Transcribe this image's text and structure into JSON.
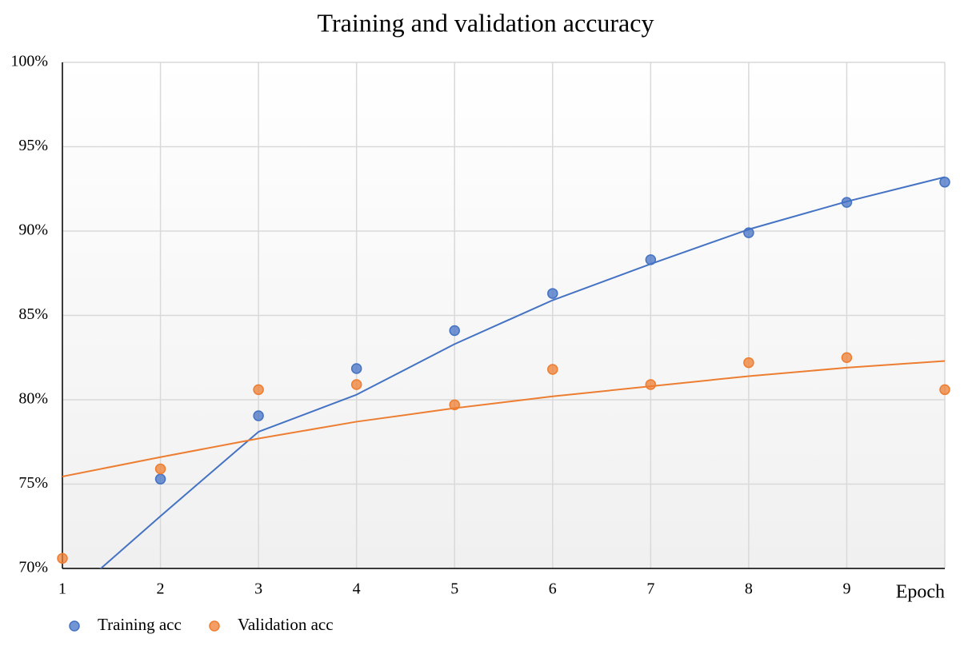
{
  "chart_data": {
    "type": "scatter",
    "title": "Training and validation accuracy",
    "x_label": "Epoch",
    "x": [
      1,
      2,
      3,
      4,
      5,
      6,
      7,
      8,
      9,
      10
    ],
    "series": [
      {
        "name": "Training acc",
        "color": "#4472c4",
        "values": [
          null,
          75.3,
          79.05,
          81.85,
          84.1,
          86.3,
          88.3,
          89.9,
          91.7,
          92.9
        ],
        "trend": [
          68,
          73.1,
          78.1,
          80.3,
          83.3,
          85.9,
          88.05,
          90.1,
          91.75,
          93.2
        ]
      },
      {
        "name": "Validation acc",
        "color": "#ed7d31",
        "values": [
          70.6,
          75.9,
          80.6,
          80.9,
          79.7,
          81.8,
          80.9,
          82.2,
          82.5,
          80.6
        ],
        "trend": [
          75.45,
          76.6,
          77.7,
          78.7,
          79.5,
          80.2,
          80.8,
          81.4,
          81.9,
          82.3
        ]
      }
    ],
    "xlim": [
      1,
      10
    ],
    "xticks": [
      1,
      2,
      3,
      4,
      5,
      6,
      7,
      8,
      9
    ],
    "ylim": [
      70,
      100
    ],
    "yticks": [
      {
        "value": 70,
        "label": "70%"
      },
      {
        "value": 75,
        "label": "75%"
      },
      {
        "value": 80,
        "label": "80%"
      },
      {
        "value": 85,
        "label": "85%"
      },
      {
        "value": 90,
        "label": "90%"
      },
      {
        "value": 95,
        "label": "95%"
      },
      {
        "value": 100,
        "label": "100%"
      }
    ],
    "grid": true,
    "legend": "bottom-left"
  }
}
